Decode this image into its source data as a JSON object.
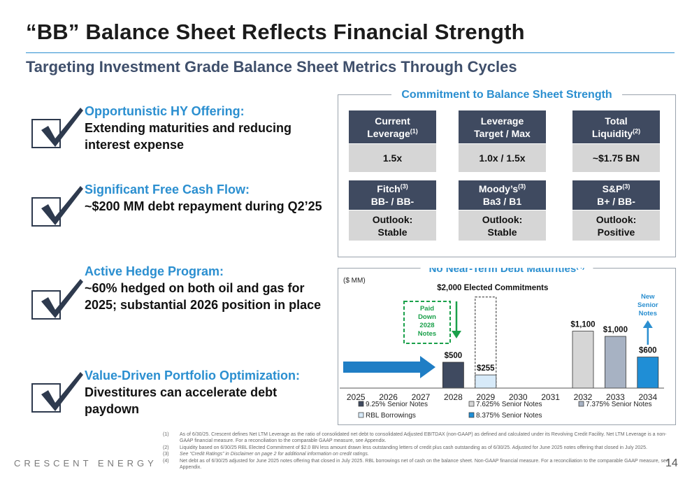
{
  "title": "“BB” Balance Sheet Reflects Financial Strength",
  "subtitle": "Targeting Investment Grade Balance Sheet Metrics Through Cycles",
  "bullets": [
    {
      "heading": "Opportunistic HY Offering:",
      "body": "Extending maturities and reducing interest expense"
    },
    {
      "heading": "Significant Free Cash Flow:",
      "body": "~$200 MM debt repayment during Q2’25"
    },
    {
      "heading": "Active Hedge Program:",
      "body": "~60% hedged on both oil and gas for 2025; substantial 2026 position in place"
    },
    {
      "heading": "Value-Driven Portfolio Optimization:",
      "body": " Divestitures can accelerate debt paydown"
    }
  ],
  "commitment": {
    "title": "Commitment to Balance Sheet Strength",
    "metrics": [
      {
        "label1": "Current",
        "label2": "Leverage",
        "sup": "(1)",
        "value": "1.5x"
      },
      {
        "label1": "Leverage",
        "label2": "Target / Max",
        "sup": "",
        "value": "1.0x / 1.5x"
      },
      {
        "label1": "Total",
        "label2": "Liquidity",
        "sup": "(2)",
        "value": "~$1.75 BN"
      }
    ],
    "ratings": [
      {
        "agency": "Fitch",
        "sup": "(3)",
        "rating": "BB- / BB-",
        "outlook_label": "Outlook:",
        "outlook": "Stable"
      },
      {
        "agency": "Moody’s",
        "sup": "(3)",
        "rating": "Ba3 / B1",
        "outlook_label": "Outlook:",
        "outlook": "Stable"
      },
      {
        "agency": "S&P",
        "sup": "(3)",
        "rating": "B+ / BB-",
        "outlook_label": "Outlook:",
        "outlook": "Positive"
      }
    ]
  },
  "chart_data": {
    "type": "bar",
    "title": "No Near-Term Debt Maturities",
    "title_sup": "(4)",
    "ylabel": "($ MM)",
    "categories": [
      "2025",
      "2026",
      "2027",
      "2028",
      "2029",
      "2030",
      "2031",
      "2032",
      "2033",
      "2034"
    ],
    "series": [
      {
        "name": "9.25% Senior Notes",
        "color": "#3f4a60",
        "values": [
          0,
          0,
          0,
          500,
          0,
          0,
          0,
          0,
          0,
          0
        ]
      },
      {
        "name": "7.625% Senior Notes",
        "color": "#d6d6d6",
        "values": [
          0,
          0,
          0,
          0,
          0,
          0,
          0,
          1100,
          0,
          0
        ]
      },
      {
        "name": "7.375% Senior Notes",
        "color": "#a7b2c3",
        "values": [
          0,
          0,
          0,
          0,
          0,
          0,
          0,
          0,
          1000,
          0
        ]
      },
      {
        "name": "RBL Borrowings",
        "color": "#d7eaf9",
        "values": [
          0,
          0,
          0,
          0,
          255,
          0,
          0,
          0,
          0,
          0
        ]
      },
      {
        "name": "8.375% Senior Notes",
        "color": "#1f8ed6",
        "values": [
          0,
          0,
          0,
          0,
          0,
          0,
          0,
          0,
          0,
          600
        ]
      }
    ],
    "bar_labels": [
      {
        "category": "2028",
        "value": 500,
        "text": "$500"
      },
      {
        "category": "2029",
        "value": 255,
        "text": "$255"
      },
      {
        "category": "2032",
        "value": 1100,
        "text": "$1,100"
      },
      {
        "category": "2033",
        "value": 1000,
        "text": "$1,000"
      },
      {
        "category": "2034",
        "value": 600,
        "text": "$600"
      }
    ],
    "elected_commitments": {
      "category": "2029",
      "value": 2000,
      "text": "$2,000 Elected Commitments"
    },
    "paid_down_note": [
      "Paid",
      "Down",
      "2028",
      "Notes"
    ],
    "new_notes_note": [
      "New",
      "Senior",
      "Notes"
    ],
    "ylim": [
      0,
      2000
    ],
    "grid": false,
    "legend_position": "bottom"
  },
  "footnotes": [
    {
      "num": "(1)",
      "text": "As of 6/30/25. Crescent defines Net LTM Leverage as the ratio of consolidated net debt to consolidated Adjusted EBITDAX (non-GAAP) as defined and calculated under its Revolving Credit Facility. Net LTM Leverage is a non-GAAP financial measure. For a reconciliation to the comparable GAAP measure, see Appendix.",
      "italic": false
    },
    {
      "num": "(2)",
      "text": "Liquidity based on 6/30/25 RBL Elected Commitment of $2.0 BN less amount drawn less outstanding letters of credit plus cash outstanding as of 6/30/25. Adjusted for June 2025 notes offering that closed in July 2025.",
      "italic": false
    },
    {
      "num": "(3)",
      "text": "See “Credit Ratings” in Disclaimer on page 2 for additional information on credit ratings.",
      "italic": true
    },
    {
      "num": "(4)",
      "text": "Net debt as of 6/30/25 adjusted for June 2025 notes offering that closed in July 2025. RBL borrowings net of cash on the balance sheet. Non-GAAP financial measure. For a reconciliation to the comparable GAAP measure, see Appendix.",
      "italic": false
    }
  ],
  "footer": {
    "company": "CRESCENT ENERGY",
    "page": "14"
  },
  "colors": {
    "accent_blue": "#2b8fd0",
    "navy": "#3f4a60",
    "paid_down_green": "#1aa04a"
  }
}
